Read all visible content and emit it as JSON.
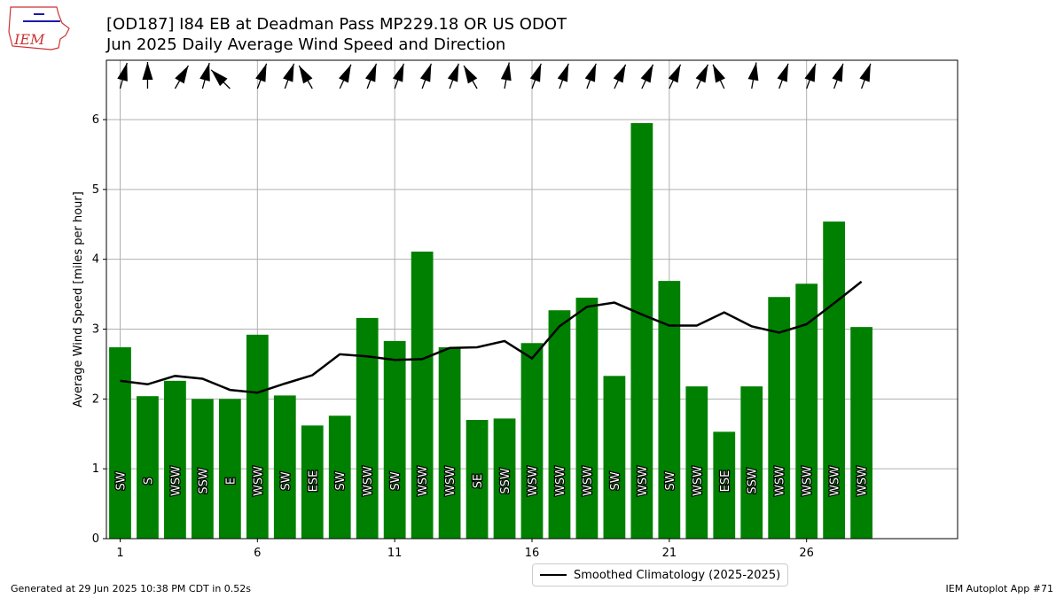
{
  "header": {
    "title_line1": "[OD187] I84 EB at Deadman Pass MP229.18  OR US ODOT",
    "title_line2": "Jun 2025 Daily Average Wind Speed and Direction",
    "logo_text": "IEM"
  },
  "footer": {
    "generated": "Generated at 29 Jun 2025 10:38 PM CDT in 0.52s",
    "app": "IEM Autoplot App #71"
  },
  "legend": {
    "climatology_label": "Smoothed Climatology (2025-2025)"
  },
  "colors": {
    "bar": "#008000",
    "line": "#000000",
    "grid": "#b0b0b0",
    "logo": "#cc3333"
  },
  "chart_data": {
    "type": "bar",
    "ylabel": "Average Wind Speed [miles per hour]",
    "xlabel": "",
    "xlim": [
      0.5,
      31.5
    ],
    "ylim": [
      0,
      6.85
    ],
    "xticks": [
      1,
      6,
      11,
      16,
      21,
      26
    ],
    "yticks": [
      0,
      1,
      2,
      3,
      4,
      5,
      6
    ],
    "grid": true,
    "legend_position": "bottom-center",
    "days": [
      1,
      2,
      3,
      4,
      5,
      6,
      7,
      8,
      9,
      10,
      11,
      12,
      13,
      14,
      15,
      16,
      17,
      18,
      19,
      20,
      21,
      22,
      23,
      24,
      25,
      26,
      27,
      28
    ],
    "speed": [
      2.74,
      2.04,
      2.26,
      2.0,
      2.0,
      2.92,
      2.05,
      1.62,
      1.76,
      3.16,
      2.83,
      4.11,
      2.74,
      1.7,
      1.72,
      2.8,
      3.27,
      3.45,
      2.33,
      5.95,
      3.69,
      2.18,
      1.53,
      2.18,
      3.46,
      3.65,
      4.54,
      3.03
    ],
    "direction_labels": [
      "SW",
      "S",
      "WSW",
      "SSW",
      "E",
      "WSW",
      "SW",
      "ESE",
      "SW",
      "WSW",
      "SW",
      "WSW",
      "WSW",
      "SE",
      "SSW",
      "WSW",
      "WSW",
      "WSW",
      "SW",
      "WSW",
      "SW",
      "WSW",
      "ESE",
      "SSW",
      "WSW",
      "WSW",
      "WSW",
      "WSW"
    ],
    "arrow_angles_deg": [
      15,
      0,
      30,
      15,
      315,
      20,
      20,
      -30,
      25,
      20,
      20,
      20,
      20,
      -30,
      10,
      20,
      20,
      20,
      25,
      25,
      25,
      25,
      -25,
      10,
      20,
      20,
      20,
      20
    ],
    "series": [
      {
        "name": "Smoothed Climatology (2025-2025)",
        "type": "line",
        "values": [
          2.26,
          2.21,
          2.33,
          2.29,
          2.13,
          2.09,
          2.22,
          2.34,
          2.64,
          2.61,
          2.56,
          2.57,
          2.73,
          2.74,
          2.83,
          2.58,
          3.04,
          3.32,
          3.38,
          3.21,
          3.05,
          3.05,
          3.24,
          3.04,
          2.95,
          3.07,
          3.37,
          3.68
        ]
      }
    ]
  }
}
